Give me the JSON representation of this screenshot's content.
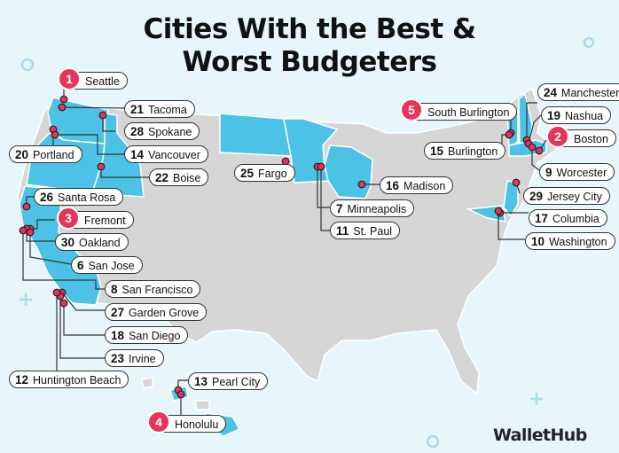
{
  "title": {
    "line1": "Cities With the Best &",
    "line2": "Worst Budgeters"
  },
  "brand": "WalletHub",
  "colors": {
    "background": "#e6f6fb",
    "land": "#d6d6d6",
    "highlight": "#4cc3e6",
    "border": "#ffffff",
    "marker": "#e8335a"
  },
  "highlighted_states": [
    "Washington",
    "Oregon",
    "Idaho",
    "California",
    "North Dakota",
    "Minnesota",
    "Wisconsin",
    "New Hampshire",
    "Massachusetts",
    "Vermont",
    "New Jersey",
    "Maryland",
    "District of Columbia",
    "Hawaii"
  ],
  "cities": [
    {
      "rank": "1",
      "name": "Seattle",
      "top": true
    },
    {
      "rank": "21",
      "name": "Tacoma",
      "top": false
    },
    {
      "rank": "28",
      "name": "Spokane",
      "top": false
    },
    {
      "rank": "20",
      "name": "Portland",
      "top": false
    },
    {
      "rank": "14",
      "name": "Vancouver",
      "top": false
    },
    {
      "rank": "22",
      "name": "Boise",
      "top": false
    },
    {
      "rank": "26",
      "name": "Santa Rosa",
      "top": false
    },
    {
      "rank": "3",
      "name": "Fremont",
      "top": true
    },
    {
      "rank": "30",
      "name": "Oakland",
      "top": false
    },
    {
      "rank": "6",
      "name": "San Jose",
      "top": false
    },
    {
      "rank": "8",
      "name": "San Francisco",
      "top": false
    },
    {
      "rank": "27",
      "name": "Garden Grove",
      "top": false
    },
    {
      "rank": "18",
      "name": "San Diego",
      "top": false
    },
    {
      "rank": "23",
      "name": "Irvine",
      "top": false
    },
    {
      "rank": "12",
      "name": "Huntington Beach",
      "top": false
    },
    {
      "rank": "13",
      "name": "Pearl City",
      "top": false
    },
    {
      "rank": "4",
      "name": "Honolulu",
      "top": true
    },
    {
      "rank": "25",
      "name": "Fargo",
      "top": false
    },
    {
      "rank": "16",
      "name": "Madison",
      "top": false
    },
    {
      "rank": "7",
      "name": "Minneapolis",
      "top": false
    },
    {
      "rank": "11",
      "name": "St. Paul",
      "top": false
    },
    {
      "rank": "5",
      "name": "South Burlington",
      "top": true
    },
    {
      "rank": "15",
      "name": "Burlington",
      "top": false
    },
    {
      "rank": "24",
      "name": "Manchester",
      "top": false
    },
    {
      "rank": "19",
      "name": "Nashua",
      "top": false
    },
    {
      "rank": "2",
      "name": "Boston",
      "top": true
    },
    {
      "rank": "9",
      "name": "Worcester",
      "top": false
    },
    {
      "rank": "29",
      "name": "Jersey City",
      "top": false
    },
    {
      "rank": "17",
      "name": "Columbia",
      "top": false
    },
    {
      "rank": "10",
      "name": "Washington",
      "top": false
    }
  ]
}
